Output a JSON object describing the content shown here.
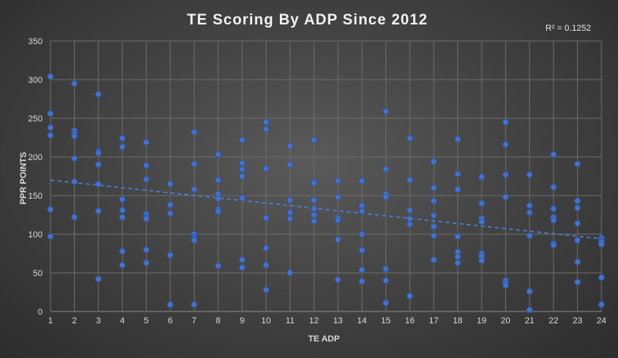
{
  "chart_data": {
    "type": "scatter",
    "title": "TE Scoring  By ADP Since 2012",
    "xlabel": "TE ADP",
    "ylabel": "PPR POINTS",
    "xlim": [
      1,
      24
    ],
    "ylim": [
      0,
      350
    ],
    "x_ticks": [
      1,
      2,
      3,
      4,
      5,
      6,
      7,
      8,
      9,
      10,
      11,
      12,
      13,
      14,
      15,
      16,
      17,
      18,
      19,
      20,
      21,
      22,
      23,
      24
    ],
    "y_ticks": [
      0,
      50,
      100,
      150,
      200,
      250,
      300,
      350
    ],
    "grid": true,
    "annotation": "R² = 0.1252",
    "trendline": {
      "type": "linear",
      "x": [
        1,
        24
      ],
      "y": [
        170,
        94
      ]
    },
    "points": [
      [
        1,
        304
      ],
      [
        1,
        256
      ],
      [
        1,
        238
      ],
      [
        1,
        228
      ],
      [
        1,
        132
      ],
      [
        1,
        97
      ],
      [
        2,
        295
      ],
      [
        2,
        234
      ],
      [
        2,
        230
      ],
      [
        2,
        227
      ],
      [
        2,
        198
      ],
      [
        2,
        168
      ],
      [
        2,
        122
      ],
      [
        3,
        281
      ],
      [
        3,
        207
      ],
      [
        3,
        205
      ],
      [
        3,
        190
      ],
      [
        3,
        165
      ],
      [
        3,
        130
      ],
      [
        3,
        42
      ],
      [
        4,
        224
      ],
      [
        4,
        213
      ],
      [
        4,
        145
      ],
      [
        4,
        131
      ],
      [
        4,
        122
      ],
      [
        4,
        78
      ],
      [
        4,
        60
      ],
      [
        5,
        219
      ],
      [
        5,
        189
      ],
      [
        5,
        171
      ],
      [
        5,
        126
      ],
      [
        5,
        122
      ],
      [
        5,
        120
      ],
      [
        5,
        80
      ],
      [
        5,
        63
      ],
      [
        6,
        165
      ],
      [
        6,
        138
      ],
      [
        6,
        127
      ],
      [
        6,
        73
      ],
      [
        6,
        9
      ],
      [
        7,
        232
      ],
      [
        7,
        191
      ],
      [
        7,
        158
      ],
      [
        7,
        100
      ],
      [
        7,
        96
      ],
      [
        7,
        94
      ],
      [
        7,
        92
      ],
      [
        7,
        9
      ],
      [
        8,
        203
      ],
      [
        8,
        170
      ],
      [
        8,
        152
      ],
      [
        8,
        146
      ],
      [
        8,
        132
      ],
      [
        8,
        129
      ],
      [
        8,
        59
      ],
      [
        9,
        222
      ],
      [
        9,
        192
      ],
      [
        9,
        184
      ],
      [
        9,
        175
      ],
      [
        9,
        147
      ],
      [
        9,
        67
      ],
      [
        9,
        57
      ],
      [
        10,
        245
      ],
      [
        10,
        236
      ],
      [
        10,
        185
      ],
      [
        10,
        121
      ],
      [
        10,
        82
      ],
      [
        10,
        60
      ],
      [
        10,
        28
      ],
      [
        11,
        214
      ],
      [
        11,
        190
      ],
      [
        11,
        144
      ],
      [
        11,
        128
      ],
      [
        11,
        120
      ],
      [
        11,
        50
      ],
      [
        12,
        222
      ],
      [
        12,
        168
      ],
      [
        12,
        166
      ],
      [
        12,
        144
      ],
      [
        12,
        133
      ],
      [
        12,
        125
      ],
      [
        12,
        117
      ],
      [
        13,
        169
      ],
      [
        13,
        148
      ],
      [
        13,
        121
      ],
      [
        13,
        118
      ],
      [
        13,
        93
      ],
      [
        13,
        41
      ],
      [
        14,
        169
      ],
      [
        14,
        137
      ],
      [
        14,
        130
      ],
      [
        14,
        100
      ],
      [
        14,
        79
      ],
      [
        14,
        54
      ],
      [
        14,
        39
      ],
      [
        15,
        259
      ],
      [
        15,
        184
      ],
      [
        15,
        152
      ],
      [
        15,
        148
      ],
      [
        15,
        55
      ],
      [
        15,
        40
      ],
      [
        15,
        11
      ],
      [
        16,
        224
      ],
      [
        16,
        170
      ],
      [
        16,
        131
      ],
      [
        16,
        120
      ],
      [
        16,
        113
      ],
      [
        16,
        20
      ],
      [
        17,
        194
      ],
      [
        17,
        160
      ],
      [
        17,
        143
      ],
      [
        17,
        124
      ],
      [
        17,
        110
      ],
      [
        17,
        98
      ],
      [
        17,
        67
      ],
      [
        18,
        223
      ],
      [
        18,
        178
      ],
      [
        18,
        158
      ],
      [
        18,
        97
      ],
      [
        18,
        77
      ],
      [
        18,
        71
      ],
      [
        18,
        63
      ],
      [
        19,
        174
      ],
      [
        19,
        140
      ],
      [
        19,
        120
      ],
      [
        19,
        116
      ],
      [
        19,
        75
      ],
      [
        19,
        71
      ],
      [
        19,
        66
      ],
      [
        20,
        245
      ],
      [
        20,
        216
      ],
      [
        20,
        177
      ],
      [
        20,
        148
      ],
      [
        20,
        40
      ],
      [
        20,
        37
      ],
      [
        20,
        34
      ],
      [
        21,
        177
      ],
      [
        21,
        137
      ],
      [
        21,
        128
      ],
      [
        21,
        98
      ],
      [
        21,
        26
      ],
      [
        21,
        2
      ],
      [
        22,
        203
      ],
      [
        22,
        161
      ],
      [
        22,
        133
      ],
      [
        22,
        122
      ],
      [
        22,
        118
      ],
      [
        22,
        88
      ],
      [
        22,
        86
      ],
      [
        23,
        191
      ],
      [
        23,
        143
      ],
      [
        23,
        134
      ],
      [
        23,
        114
      ],
      [
        23,
        92
      ],
      [
        23,
        64
      ],
      [
        23,
        38
      ],
      [
        24,
        95
      ],
      [
        24,
        92
      ],
      [
        24,
        90
      ],
      [
        24,
        87
      ],
      [
        24,
        44
      ],
      [
        24,
        9
      ]
    ]
  }
}
